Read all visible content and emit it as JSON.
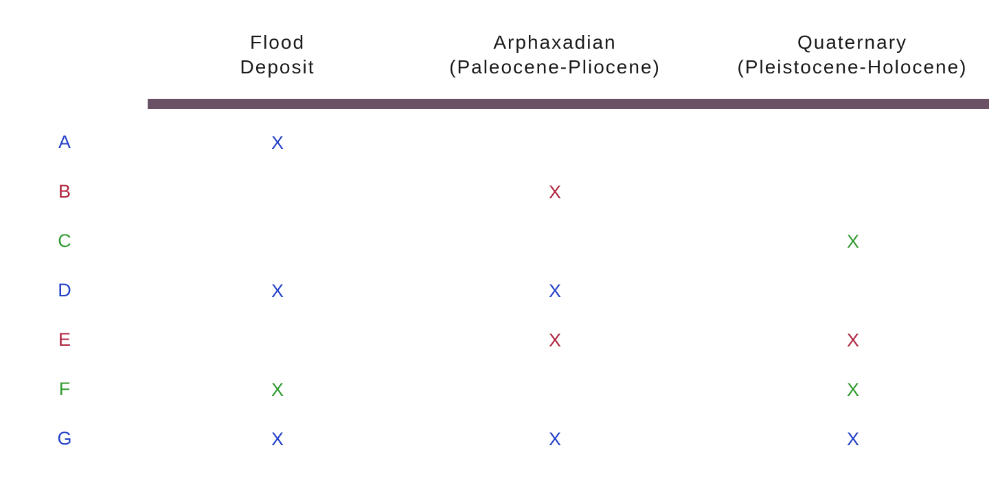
{
  "columns": [
    {
      "line1": "Flood",
      "line2": "Deposit"
    },
    {
      "line1": "Arphaxadian",
      "line2": "(Paleocene-Pliocene)"
    },
    {
      "line1": "Quaternary",
      "line2": "(Pleistocene-Holocene)"
    }
  ],
  "colors": {
    "blue": "#2340c8",
    "red": "#b0243f",
    "green": "#2f9a2f",
    "rule": "#6a5166"
  },
  "rows": [
    {
      "label": "A",
      "color": "blue",
      "marks": [
        "X",
        "",
        ""
      ]
    },
    {
      "label": "B",
      "color": "red",
      "marks": [
        "",
        "X",
        ""
      ]
    },
    {
      "label": "C",
      "color": "green",
      "marks": [
        "",
        "",
        "X"
      ]
    },
    {
      "label": "D",
      "color": "blue",
      "marks": [
        "X",
        "X",
        ""
      ]
    },
    {
      "label": "E",
      "color": "red",
      "marks": [
        "",
        "X",
        "X"
      ]
    },
    {
      "label": "F",
      "color": "green",
      "marks": [
        "X",
        "",
        "X"
      ]
    },
    {
      "label": "G",
      "color": "blue",
      "marks": [
        "X",
        "X",
        "X"
      ]
    }
  ]
}
